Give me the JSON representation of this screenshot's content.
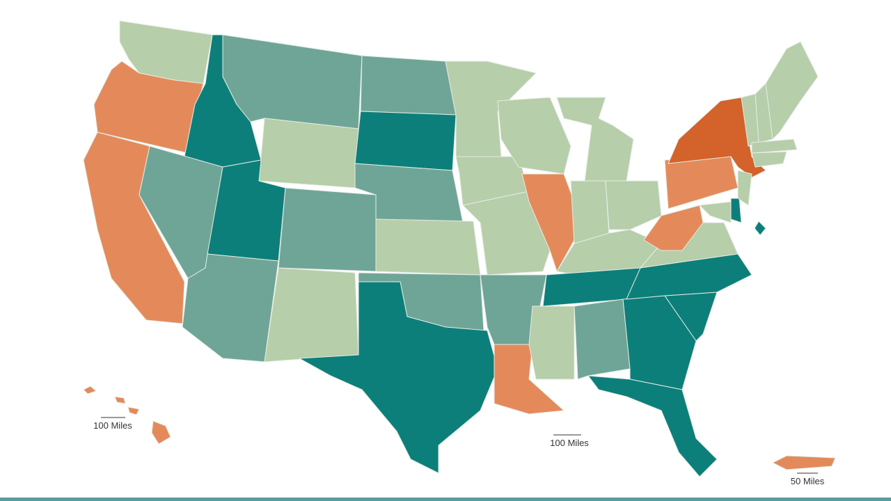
{
  "scale_bars": [
    {
      "label": "100 Miles"
    },
    {
      "label": "100 Miles"
    },
    {
      "label": "50 Miles"
    }
  ]
}
